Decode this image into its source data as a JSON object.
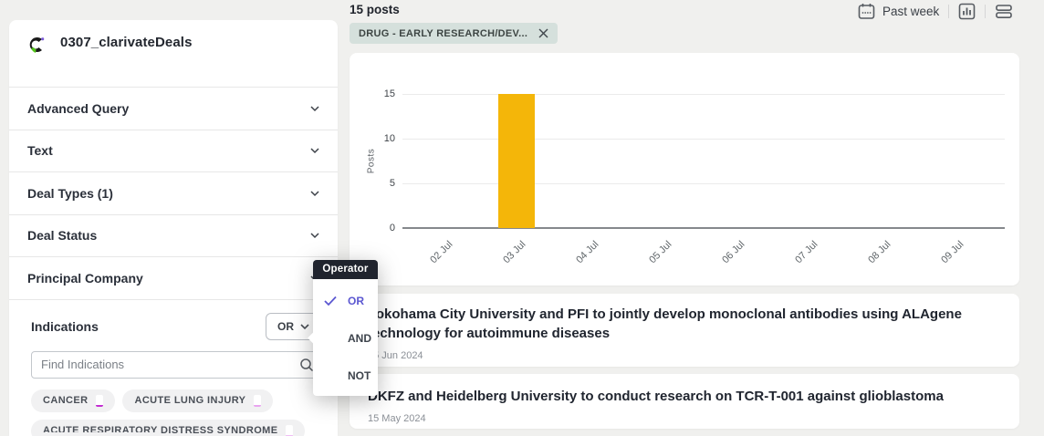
{
  "sidebar": {
    "project_title": "0307_clarivateDeals",
    "sections": [
      {
        "label": "Advanced Query"
      },
      {
        "label": "Text"
      },
      {
        "label": "Deal Types (1)"
      },
      {
        "label": "Deal Status"
      },
      {
        "label": "Principal Company"
      }
    ],
    "indications": {
      "label": "Indications",
      "operator_value": "OR",
      "search_placeholder": "Find Indications",
      "chips": [
        {
          "label": "CANCER",
          "accent": "#c32cd1"
        },
        {
          "label": "ACUTE LUNG INJURY",
          "accent": "#e9a4f0"
        },
        {
          "label": "ACUTE RESPIRATORY DISTRESS SYNDROME",
          "accent": "#f0bdf4"
        }
      ]
    }
  },
  "header": {
    "posts_count": "15 posts",
    "filter_chip": "DRUG - EARLY RESEARCH/DEV...",
    "time_range": "Past week"
  },
  "operator_menu": {
    "title": "Operator",
    "options": [
      {
        "label": "OR",
        "selected": true
      },
      {
        "label": "AND",
        "selected": false
      },
      {
        "label": "NOT",
        "selected": false
      }
    ]
  },
  "chart_data": {
    "type": "bar",
    "categories": [
      "02 Jul",
      "03 Jul",
      "04 Jul",
      "05 Jul",
      "06 Jul",
      "07 Jul",
      "08 Jul",
      "09 Jul"
    ],
    "values": [
      0,
      15,
      0,
      0,
      0,
      0,
      0,
      0
    ],
    "title": "",
    "xlabel": "",
    "ylabel": "Posts",
    "ylim": [
      0,
      15
    ],
    "yticks": [
      0,
      5,
      10,
      15
    ],
    "bar_color": "#f4b609",
    "grid": true,
    "legend": false
  },
  "posts": [
    {
      "title": "Yokohama City University and PFI to jointly develop monoclonal antibodies using ALAgene technology for autoimmune diseases",
      "date": "05 Jun 2024"
    },
    {
      "title": "DKFZ and Heidelberg University to conduct research on TCR-T-001 against glioblastoma",
      "date": "15 May 2024"
    }
  ],
  "colors": {
    "accent_purple": "#5b57d1",
    "bar_yellow": "#f4b609",
    "filter_chip_bg": "#d5e0dc",
    "popup_header_bg": "#20242e",
    "chip_bg": "#f1f1f2",
    "page_bg": "#f0f0ee"
  }
}
